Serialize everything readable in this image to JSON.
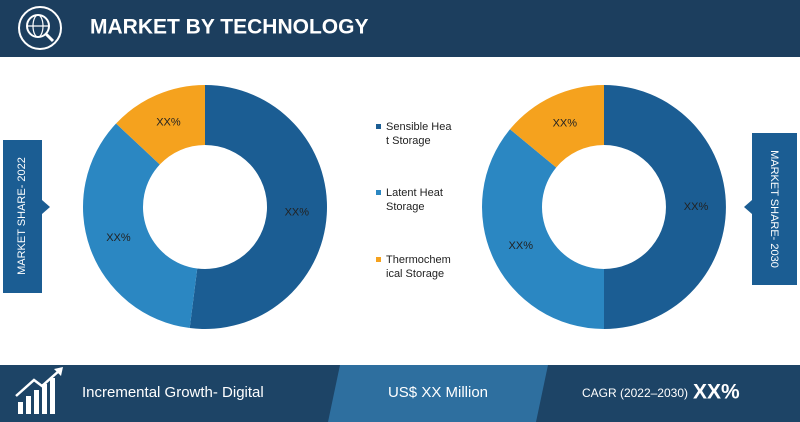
{
  "header": {
    "title": "MARKET BY TECHNOLOGY"
  },
  "chart_data": [
    {
      "type": "pie",
      "title": "MARKET SHARE- 2022",
      "categories": [
        "Sensible Heat Storage",
        "Latent Heat Storage",
        "Thermochemical Storage"
      ],
      "values": [
        52,
        35,
        13
      ],
      "value_labels": [
        "XX%",
        "XX%",
        "XX%"
      ],
      "colors": [
        "#1b5d93",
        "#2b87c2",
        "#f5a21e"
      ]
    },
    {
      "type": "pie",
      "title": "MARKET SHARE- 2030",
      "categories": [
        "Sensible Heat Storage",
        "Latent Heat Storage",
        "Thermochemical Storage"
      ],
      "values": [
        50,
        36,
        14
      ],
      "value_labels": [
        "XX%",
        "XX%",
        "XX%"
      ],
      "colors": [
        "#1b5d93",
        "#2b87c2",
        "#f5a21e"
      ]
    }
  ],
  "footer": {
    "growth": "Incremental Growth- Digital",
    "market_size": "US$ XX Million",
    "cagr_label": "CAGR (2022–2030)",
    "cagr_value": "XX%"
  }
}
